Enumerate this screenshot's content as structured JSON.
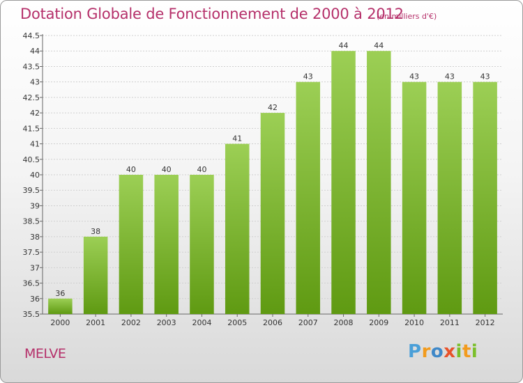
{
  "header": {
    "title": "Dotation Globale de Fonctionnement de 2000 à 2012",
    "unit": "(en milliers d'€)"
  },
  "footer": {
    "commune": "MELVE",
    "brand": "Proxiti"
  },
  "colors": {
    "accent": "#b5306a",
    "bar_top": "#9ccf55",
    "bar_bottom": "#5f9a12",
    "grid": "#cfcfcf"
  },
  "chart_data": {
    "type": "bar",
    "title": "Dotation Globale de Fonctionnement de 2000 à 2012",
    "subtitle": "(en milliers d'€)",
    "xlabel": "",
    "ylabel": "",
    "categories": [
      "2000",
      "2001",
      "2002",
      "2003",
      "2004",
      "2005",
      "2006",
      "2007",
      "2008",
      "2009",
      "2010",
      "2011",
      "2012"
    ],
    "values": [
      36,
      38,
      40,
      40,
      40,
      41,
      42,
      43,
      44,
      44,
      43,
      43,
      43
    ],
    "data_labels": [
      "36",
      "38",
      "40",
      "40",
      "40",
      "41",
      "42",
      "43",
      "44",
      "44",
      "43",
      "43",
      "43"
    ],
    "ylim": [
      35.5,
      44.5
    ],
    "yticks": [
      "35.5",
      "36",
      "36.5",
      "37",
      "37.5",
      "38",
      "38.5",
      "39",
      "39.5",
      "40",
      "40.5",
      "41",
      "41.5",
      "42",
      "42.5",
      "43",
      "43.5",
      "44",
      "44.5"
    ],
    "grid": true,
    "legend": "none"
  }
}
